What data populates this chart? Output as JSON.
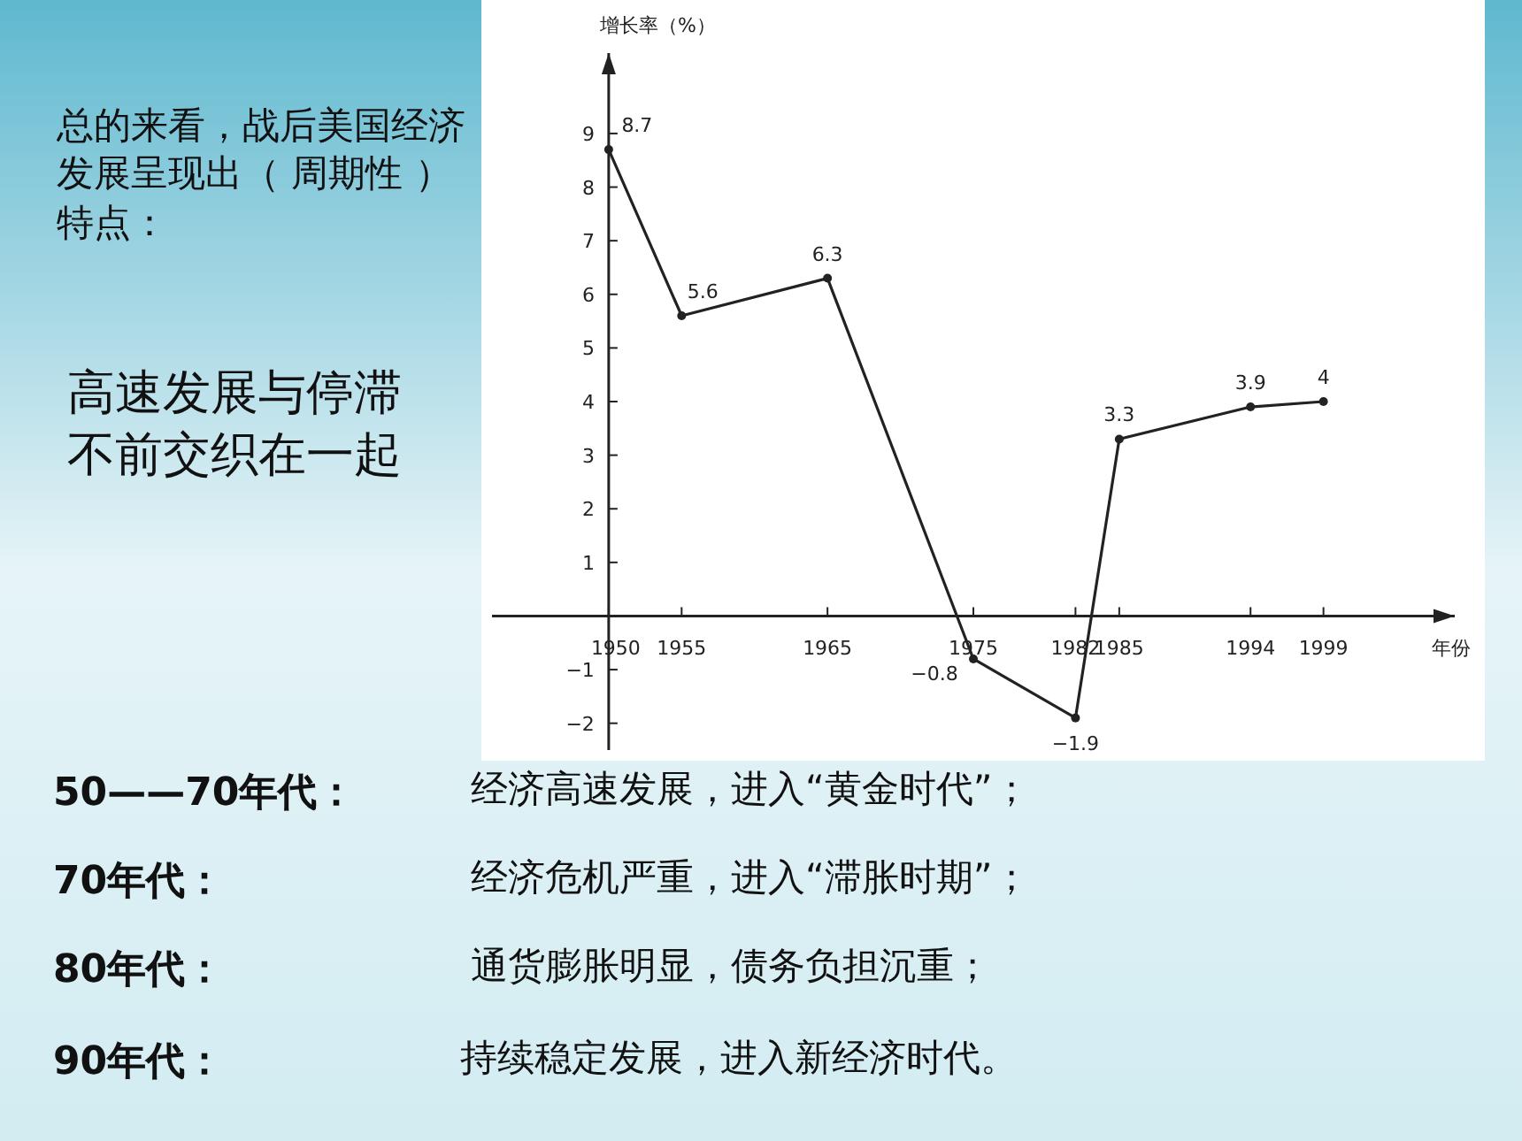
{
  "chart_data": {
    "type": "line",
    "ylabel": "增长率（%）",
    "xlabel": "年份",
    "x": [
      1950,
      1955,
      1965,
      1975,
      1982,
      1985,
      1994,
      1999
    ],
    "values": [
      8.7,
      5.6,
      6.3,
      -0.8,
      -1.9,
      3.3,
      3.9,
      4
    ],
    "color": "#222222",
    "marker": "circle",
    "data_labels": true,
    "grid": false,
    "xlim": [
      1942,
      2008
    ],
    "ylim": [
      -2.5,
      10.5
    ],
    "xticks": [
      1950,
      1955,
      1965,
      1975,
      1982,
      1985,
      1994,
      1999
    ],
    "yticks": [
      -2,
      -1,
      1,
      2,
      3,
      4,
      5,
      6,
      7,
      8,
      9
    ],
    "annotations": [
      "总的来看，战后美国经济发展呈现出（ 周期性 ）特点：",
      "高速发展与停滞不前交织在一起",
      "50——70年代：",
      "经济高速发展，进入“黄金时代”；",
      "70年代：",
      "经济危机严重，进入“滞胀时期”；",
      "80年代：",
      "通货膨胀明显，债务负担沉重；",
      "90年代：",
      "持续稳定发展，进入新经济时代。"
    ]
  }
}
